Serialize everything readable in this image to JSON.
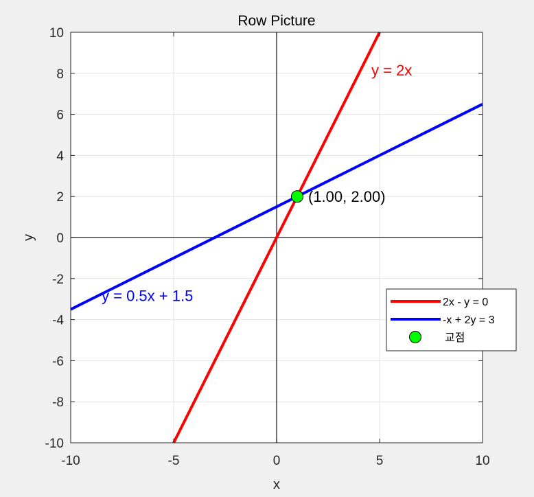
{
  "chart_data": {
    "type": "line",
    "title": "Row Picture",
    "xlabel": "x",
    "ylabel": "y",
    "xlim": [
      -10,
      10
    ],
    "ylim": [
      -10,
      10
    ],
    "xticks": [
      -10,
      -5,
      0,
      5,
      10
    ],
    "yticks": [
      -10,
      -8,
      -6,
      -4,
      -2,
      0,
      2,
      4,
      6,
      8,
      10
    ],
    "grid": true,
    "series": [
      {
        "name": "2x - y = 0",
        "color": "#ff0000",
        "x": [
          -5,
          5
        ],
        "y": [
          -10,
          10
        ]
      },
      {
        "name": "-x + 2y = 3",
        "color": "#0000ff",
        "x": [
          -10,
          10
        ],
        "y": [
          -3.5,
          6.5
        ]
      }
    ],
    "intersection": {
      "name": "교점",
      "x": 1,
      "y": 2,
      "color": "#00ff00",
      "label": "(1.00, 2.00)"
    },
    "annotations": [
      {
        "text": "y = 2x",
        "x": 4.6,
        "y": 7.9,
        "color": "#ff0000"
      },
      {
        "text": "y = 0.5x + 1.5",
        "x": -8.5,
        "y": -3.1,
        "color": "#0000ff"
      }
    ],
    "legend": "lower-right"
  }
}
